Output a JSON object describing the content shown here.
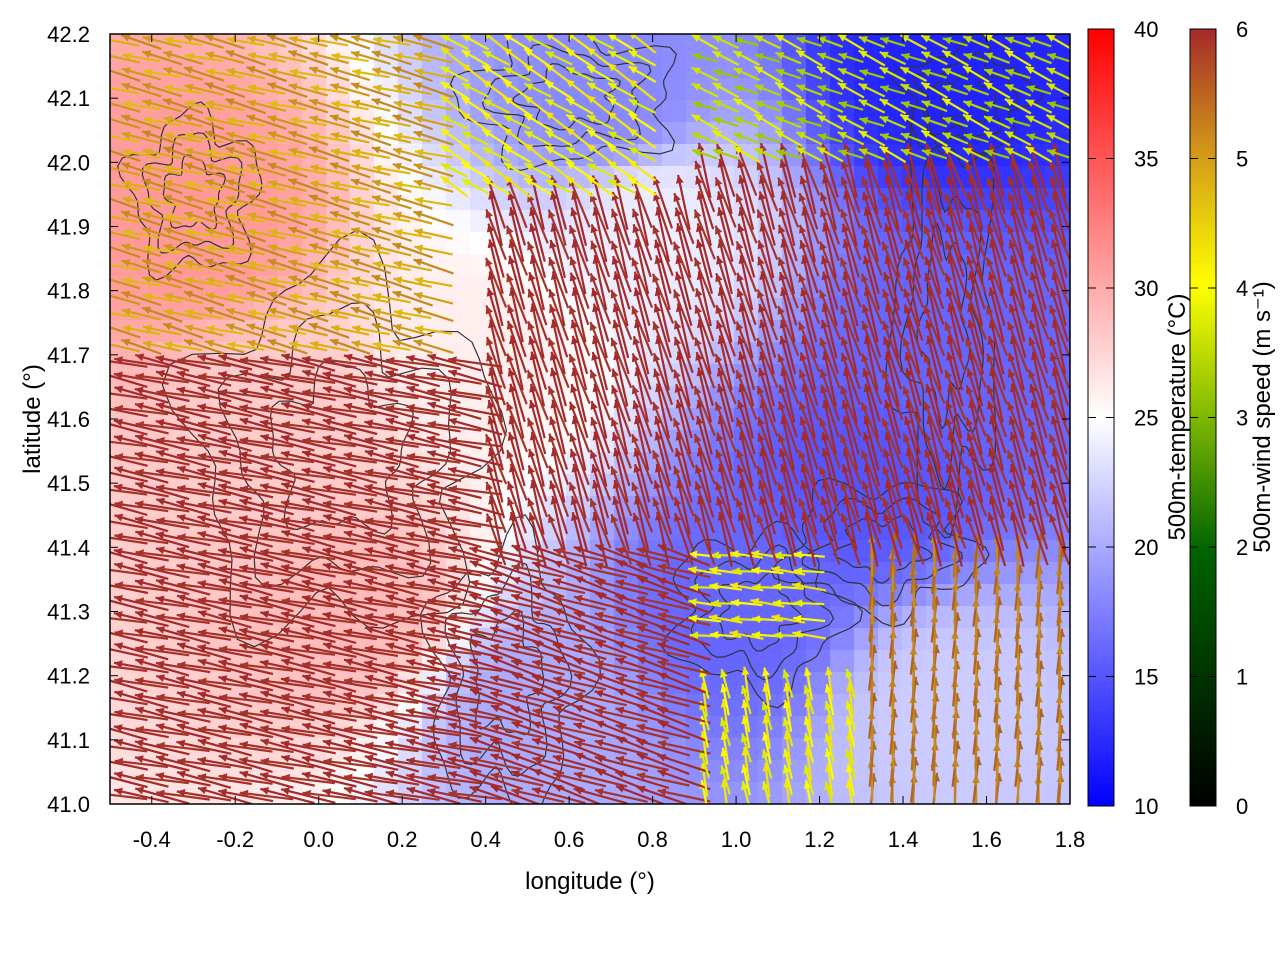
{
  "chart_data": {
    "type": "heatmap",
    "title": "",
    "xlabel": "longitude (°)",
    "ylabel": "latitude (°)",
    "xlim": [
      -0.5,
      1.8
    ],
    "ylim": [
      41.0,
      42.2
    ],
    "x_ticks": [
      "-0.4",
      "-0.2",
      "0.0",
      "0.2",
      "0.4",
      "0.6",
      "0.8",
      "1.0",
      "1.2",
      "1.4",
      "1.6",
      "1.8"
    ],
    "y_ticks": [
      "41.0",
      "41.1",
      "41.2",
      "41.3",
      "41.4",
      "41.5",
      "41.6",
      "41.7",
      "41.8",
      "41.9",
      "42.0",
      "42.1",
      "42.2"
    ],
    "temperature_colorbar": {
      "label": "500m-temperature (°C)",
      "range": [
        10,
        40
      ],
      "ticks": [
        "10",
        "15",
        "20",
        "25",
        "30",
        "35",
        "40"
      ],
      "colors": [
        "#0000ff",
        "#ffffff",
        "#ff0000"
      ]
    },
    "wind_colorbar": {
      "label": "500m-wind speed (m s⁻¹)",
      "range": [
        0,
        6
      ],
      "ticks": [
        "0",
        "1",
        "2",
        "3",
        "4",
        "5",
        "6"
      ],
      "colors": [
        "#000000",
        "#006400",
        "#7fb800",
        "#ffff00",
        "#d4a017",
        "#a0522d",
        "#a52a2a"
      ]
    },
    "temperature_regions": [
      {
        "lon": -0.3,
        "lat": 41.9,
        "t": 31
      },
      {
        "lon": -0.1,
        "lat": 41.6,
        "t": 28
      },
      {
        "lon": 0.1,
        "lat": 41.3,
        "t": 29
      },
      {
        "lon": 0.4,
        "lat": 41.7,
        "t": 26
      },
      {
        "lon": 0.5,
        "lat": 41.15,
        "t": 20
      },
      {
        "lon": 0.8,
        "lat": 41.9,
        "t": 24
      },
      {
        "lon": 1.0,
        "lat": 41.3,
        "t": 16
      },
      {
        "lon": 1.3,
        "lat": 41.5,
        "t": 15
      },
      {
        "lon": 1.5,
        "lat": 41.7,
        "t": 16
      },
      {
        "lon": 1.5,
        "lat": 42.15,
        "t": 12
      },
      {
        "lon": 1.5,
        "lat": 41.15,
        "t": 22
      },
      {
        "lon": 0.7,
        "lat": 42.1,
        "t": 18
      }
    ],
    "wind_field": [
      {
        "lon_min": -0.5,
        "lon_max": 0.4,
        "lat_min": 41.0,
        "lat_max": 41.7,
        "u": -1.0,
        "v": 0.2,
        "speed": 6
      },
      {
        "lon_min": -0.5,
        "lon_max": 0.3,
        "lat_min": 41.7,
        "lat_max": 42.2,
        "u": -1.0,
        "v": 0.25,
        "speed": 4
      },
      {
        "lon_min": 0.3,
        "lon_max": 0.8,
        "lat_min": 41.95,
        "lat_max": 42.2,
        "u": -0.8,
        "v": 0.5,
        "speed": 3
      },
      {
        "lon_min": 0.4,
        "lon_max": 0.9,
        "lat_min": 41.4,
        "lat_max": 41.95,
        "u": -0.3,
        "v": 1.0,
        "speed": 6
      },
      {
        "lon_min": 0.9,
        "lon_max": 1.8,
        "lat_min": 41.4,
        "lat_max": 42.0,
        "u": -0.3,
        "v": 1.0,
        "speed": 6
      },
      {
        "lon_min": 0.9,
        "lon_max": 1.8,
        "lat_min": 42.0,
        "lat_max": 42.2,
        "u": -0.7,
        "v": 0.3,
        "speed": 2.5
      },
      {
        "lon_min": 0.4,
        "lon_max": 0.9,
        "lat_min": 41.0,
        "lat_max": 41.4,
        "u": -1.0,
        "v": 0.3,
        "speed": 6
      },
      {
        "lon_min": 0.8,
        "lon_max": 1.2,
        "lat_min": 41.25,
        "lat_max": 41.4,
        "u": -1.0,
        "v": 0.1,
        "speed": 3
      },
      {
        "lon_min": 0.9,
        "lon_max": 1.3,
        "lat_min": 41.0,
        "lat_max": 41.2,
        "u": -0.2,
        "v": 1.0,
        "speed": 3
      },
      {
        "lon_min": 1.3,
        "lon_max": 1.8,
        "lat_min": 41.0,
        "lat_max": 41.4,
        "u": 0.05,
        "v": 1.0,
        "speed": 4.5
      }
    ]
  }
}
